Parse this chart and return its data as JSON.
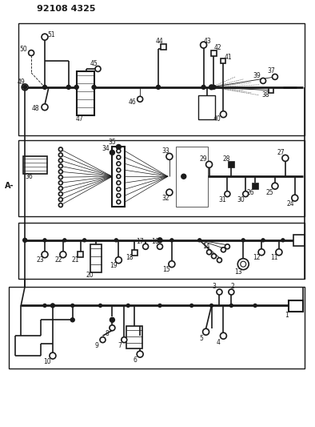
{
  "title": "92108 4325",
  "bg_color": "#ffffff",
  "line_color": "#1a1a1a",
  "fig_width": 3.94,
  "fig_height": 5.33,
  "dpi": 100
}
